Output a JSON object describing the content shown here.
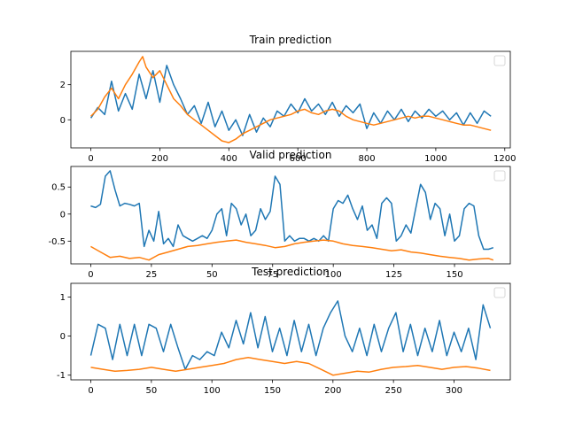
{
  "chart_data": [
    {
      "type": "line",
      "title": "Train prediction",
      "xlabel": "",
      "ylabel": "",
      "xlim": [
        -58,
        1216
      ],
      "ylim": [
        -1.6,
        3.9
      ],
      "xticks": [
        0,
        200,
        400,
        600,
        800,
        1000,
        1200
      ],
      "yticks": [
        0,
        2
      ],
      "legend": "top-right (empty)",
      "grid": false,
      "series": [
        {
          "color": "#1f77b4",
          "x": [
            0,
            20,
            40,
            60,
            80,
            100,
            120,
            140,
            160,
            180,
            200,
            220,
            240,
            260,
            280,
            300,
            320,
            340,
            360,
            380,
            400,
            420,
            440,
            460,
            480,
            500,
            520,
            540,
            560,
            580,
            600,
            620,
            640,
            660,
            680,
            700,
            720,
            740,
            760,
            780,
            800,
            820,
            840,
            860,
            880,
            900,
            920,
            940,
            960,
            980,
            1000,
            1020,
            1040,
            1060,
            1080,
            1100,
            1120,
            1140,
            1160
          ],
          "values": [
            0.1,
            0.7,
            0.3,
            2.2,
            0.5,
            1.5,
            0.6,
            2.6,
            1.2,
            2.8,
            1.0,
            3.1,
            2.0,
            1.2,
            0.3,
            0.8,
            -0.2,
            1.0,
            -0.4,
            0.5,
            -0.6,
            0.0,
            -0.9,
            0.3,
            -0.7,
            0.1,
            -0.4,
            0.5,
            0.2,
            0.9,
            0.4,
            1.2,
            0.5,
            0.9,
            0.3,
            1.0,
            0.2,
            0.8,
            0.4,
            0.9,
            -0.5,
            0.4,
            -0.2,
            0.5,
            0.0,
            0.6,
            -0.1,
            0.5,
            0.1,
            0.6,
            0.2,
            0.5,
            0.0,
            0.4,
            -0.3,
            0.4,
            -0.2,
            0.5,
            0.2
          ]
        },
        {
          "color": "#ff7f0e",
          "x": [
            0,
            20,
            40,
            60,
            80,
            100,
            120,
            140,
            150,
            160,
            180,
            200,
            220,
            240,
            260,
            280,
            300,
            320,
            340,
            360,
            380,
            400,
            420,
            440,
            460,
            480,
            500,
            520,
            540,
            560,
            580,
            600,
            620,
            640,
            660,
            680,
            700,
            720,
            740,
            760,
            780,
            800,
            820,
            840,
            860,
            880,
            900,
            920,
            940,
            960,
            980,
            1000,
            1020,
            1040,
            1060,
            1080,
            1100,
            1120,
            1140,
            1160
          ],
          "values": [
            0.2,
            0.6,
            1.3,
            1.8,
            1.2,
            2.0,
            2.6,
            3.3,
            3.6,
            3.0,
            2.4,
            2.8,
            2.0,
            1.2,
            0.8,
            0.3,
            0.0,
            -0.3,
            -0.6,
            -0.9,
            -1.2,
            -1.3,
            -1.1,
            -0.8,
            -0.6,
            -0.4,
            -0.2,
            0.0,
            0.1,
            0.2,
            0.3,
            0.5,
            0.6,
            0.4,
            0.3,
            0.5,
            0.6,
            0.5,
            0.2,
            0.0,
            -0.1,
            -0.2,
            -0.3,
            -0.2,
            -0.1,
            0.0,
            0.1,
            0.2,
            0.1,
            0.2,
            0.2,
            0.1,
            0.0,
            -0.1,
            -0.2,
            -0.3,
            -0.3,
            -0.4,
            -0.5,
            -0.6
          ]
        }
      ]
    },
    {
      "type": "line",
      "title": "Valid prediction",
      "xlabel": "",
      "ylabel": "",
      "xlim": [
        -8.2,
        173
      ],
      "ylim": [
        -0.92,
        0.88
      ],
      "xticks": [
        0,
        25,
        50,
        75,
        100,
        125,
        150
      ],
      "yticks": [
        -0.5,
        0.0,
        0.5
      ],
      "legend": "top-right (empty)",
      "grid": false,
      "series": [
        {
          "color": "#1f77b4",
          "x": [
            0,
            2,
            4,
            6,
            8,
            10,
            12,
            14,
            16,
            18,
            20,
            22,
            24,
            26,
            28,
            30,
            32,
            34,
            36,
            38,
            40,
            42,
            44,
            46,
            48,
            50,
            52,
            54,
            56,
            58,
            60,
            62,
            64,
            66,
            68,
            70,
            72,
            74,
            76,
            78,
            80,
            82,
            84,
            86,
            88,
            90,
            92,
            94,
            96,
            98,
            100,
            102,
            104,
            106,
            108,
            110,
            112,
            114,
            116,
            118,
            120,
            122,
            124,
            126,
            128,
            130,
            132,
            134,
            136,
            138,
            140,
            142,
            144,
            146,
            148,
            150,
            152,
            154,
            156,
            158,
            160,
            162,
            164,
            166
          ],
          "values": [
            0.15,
            0.12,
            0.18,
            0.7,
            0.8,
            0.45,
            0.15,
            0.2,
            0.18,
            0.15,
            0.2,
            -0.6,
            -0.3,
            -0.5,
            0.05,
            -0.55,
            -0.45,
            -0.6,
            -0.2,
            -0.4,
            -0.45,
            -0.5,
            -0.45,
            -0.4,
            -0.45,
            -0.3,
            0.0,
            0.1,
            -0.4,
            0.2,
            0.1,
            -0.2,
            0.0,
            -0.4,
            -0.3,
            0.1,
            -0.1,
            0.05,
            0.7,
            0.55,
            -0.5,
            -0.4,
            -0.5,
            -0.45,
            -0.45,
            -0.5,
            -0.45,
            -0.5,
            -0.4,
            -0.5,
            0.1,
            0.25,
            0.2,
            0.35,
            0.1,
            -0.1,
            0.15,
            -0.3,
            -0.2,
            -0.45,
            0.2,
            0.3,
            0.2,
            -0.5,
            -0.4,
            -0.2,
            -0.35,
            0.1,
            0.55,
            0.4,
            -0.1,
            0.2,
            0.1,
            -0.4,
            0.0,
            -0.5,
            -0.4,
            0.1,
            0.2,
            0.15,
            -0.4,
            -0.65,
            -0.65,
            -0.62
          ]
        },
        {
          "color": "#ff7f0e",
          "x": [
            0,
            4,
            8,
            12,
            16,
            20,
            24,
            28,
            32,
            36,
            40,
            44,
            48,
            52,
            56,
            60,
            64,
            68,
            72,
            76,
            80,
            84,
            88,
            92,
            96,
            100,
            104,
            108,
            112,
            116,
            120,
            124,
            128,
            132,
            136,
            140,
            144,
            148,
            152,
            156,
            160,
            164,
            166
          ],
          "values": [
            -0.6,
            -0.7,
            -0.8,
            -0.78,
            -0.82,
            -0.8,
            -0.85,
            -0.75,
            -0.7,
            -0.65,
            -0.6,
            -0.58,
            -0.55,
            -0.52,
            -0.5,
            -0.48,
            -0.52,
            -0.55,
            -0.58,
            -0.62,
            -0.6,
            -0.55,
            -0.52,
            -0.5,
            -0.48,
            -0.5,
            -0.55,
            -0.58,
            -0.6,
            -0.62,
            -0.65,
            -0.68,
            -0.66,
            -0.7,
            -0.72,
            -0.75,
            -0.78,
            -0.8,
            -0.82,
            -0.85,
            -0.83,
            -0.82,
            -0.85
          ]
        }
      ]
    },
    {
      "type": "line",
      "title": "Test prediction",
      "xlabel": "",
      "ylabel": "",
      "xlim": [
        -16.5,
        346.5
      ],
      "ylim": [
        -1.12,
        1.35
      ],
      "xticks": [
        0,
        50,
        100,
        150,
        200,
        250,
        300
      ],
      "yticks": [
        -1,
        0,
        1
      ],
      "legend": "top-right (empty)",
      "grid": false,
      "series": [
        {
          "color": "#1f77b4",
          "x": [
            0,
            6,
            12,
            18,
            24,
            30,
            36,
            42,
            48,
            54,
            60,
            66,
            72,
            78,
            84,
            90,
            96,
            102,
            108,
            114,
            120,
            126,
            132,
            138,
            144,
            150,
            156,
            162,
            168,
            174,
            180,
            186,
            192,
            198,
            204,
            210,
            216,
            222,
            228,
            234,
            240,
            246,
            252,
            258,
            264,
            270,
            276,
            282,
            288,
            294,
            300,
            306,
            312,
            318,
            324,
            330
          ],
          "values": [
            -0.5,
            0.3,
            0.2,
            -0.6,
            0.3,
            -0.5,
            0.3,
            -0.5,
            0.3,
            0.2,
            -0.4,
            0.3,
            -0.3,
            -0.85,
            -0.5,
            -0.6,
            -0.4,
            -0.5,
            0.1,
            -0.3,
            0.4,
            -0.2,
            0.6,
            -0.3,
            0.5,
            -0.4,
            0.2,
            -0.5,
            0.4,
            -0.4,
            0.3,
            -0.5,
            0.2,
            0.6,
            0.9,
            0.0,
            -0.4,
            0.2,
            -0.5,
            0.3,
            -0.4,
            0.2,
            0.6,
            -0.4,
            0.3,
            -0.5,
            0.2,
            -0.4,
            0.4,
            -0.5,
            0.1,
            -0.4,
            0.2,
            -0.6,
            0.8,
            0.2
          ]
        },
        {
          "color": "#ff7f0e",
          "x": [
            0,
            10,
            20,
            30,
            40,
            50,
            60,
            70,
            80,
            90,
            100,
            110,
            120,
            130,
            140,
            150,
            160,
            170,
            180,
            190,
            200,
            210,
            220,
            230,
            240,
            250,
            260,
            270,
            280,
            290,
            300,
            310,
            320,
            330
          ],
          "values": [
            -0.8,
            -0.85,
            -0.9,
            -0.88,
            -0.85,
            -0.8,
            -0.85,
            -0.9,
            -0.85,
            -0.8,
            -0.75,
            -0.7,
            -0.6,
            -0.55,
            -0.6,
            -0.65,
            -0.7,
            -0.65,
            -0.7,
            -0.85,
            -1.0,
            -0.95,
            -0.9,
            -0.92,
            -0.85,
            -0.8,
            -0.78,
            -0.75,
            -0.8,
            -0.85,
            -0.8,
            -0.78,
            -0.82,
            -0.88
          ]
        }
      ]
    }
  ]
}
